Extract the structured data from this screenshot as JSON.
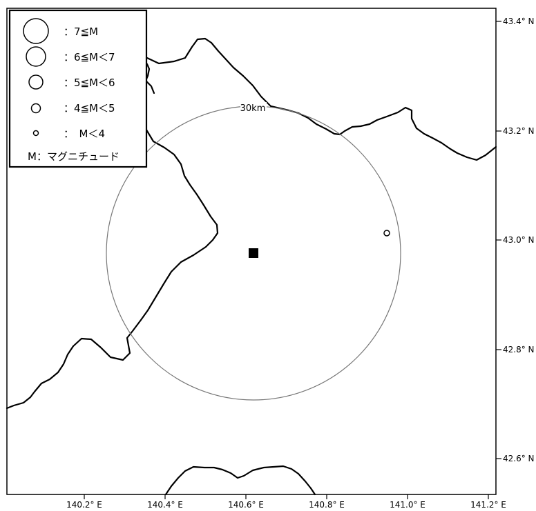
{
  "map": {
    "lat_ticks": [
      {
        "value": 43.4,
        "label": "43.4° N"
      },
      {
        "value": 43.2,
        "label": "43.2° N"
      },
      {
        "value": 43.0,
        "label": "43.0° N"
      },
      {
        "value": 42.8,
        "label": "42.8° N"
      },
      {
        "value": 42.6,
        "label": "42.6° N"
      }
    ],
    "lon_ticks": [
      {
        "value": 140.2,
        "label": "140.2° E"
      },
      {
        "value": 140.4,
        "label": "140.4° E"
      },
      {
        "value": 140.6,
        "label": "140.6° E"
      },
      {
        "value": 140.8,
        "label": "140.8° E"
      },
      {
        "value": 141.0,
        "label": "141.0° E"
      },
      {
        "value": 141.2,
        "label": "141.2° E"
      }
    ],
    "radius_label": "30km",
    "legend": {
      "items": [
        {
          "symbol_size": "7",
          "label": "：7≦M"
        },
        {
          "symbol_size": "6",
          "label": "：6≦M＜7"
        },
        {
          "symbol_size": "5",
          "label": "：5≦M＜6"
        },
        {
          "symbol_size": "4",
          "label": "：4≦M＜5"
        },
        {
          "symbol_size": "3",
          "label": "：　M＜4"
        }
      ],
      "footer": "M：マグニチュード"
    }
  }
}
